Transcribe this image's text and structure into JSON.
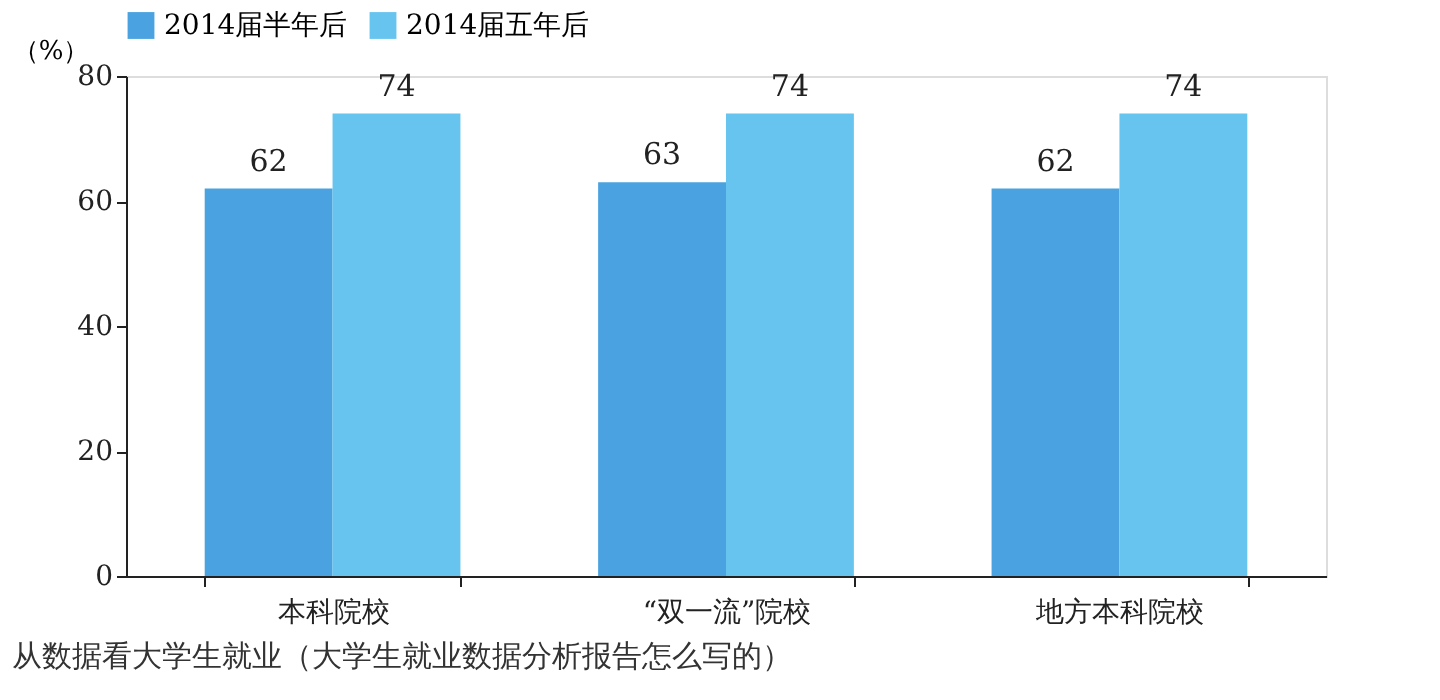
{
  "chart_data": {
    "type": "bar",
    "ylabel": "（%）",
    "categories": [
      "本科院校",
      "“双一流”院校",
      "地方本科院校"
    ],
    "series": [
      {
        "name": "2014届半年后",
        "color": "#4aa3e0",
        "values": [
          62,
          63,
          62
        ]
      },
      {
        "name": "2014届五年后",
        "color": "#66c4ef",
        "values": [
          74,
          74,
          74
        ]
      }
    ],
    "ylim": [
      0,
      80
    ],
    "yticks": [
      0,
      20,
      40,
      60,
      80
    ],
    "grid": false,
    "legend": "top",
    "data_labels": true,
    "annotations": [
      "从数据看大学生就业（大学生就业数据分析报告怎么写的）"
    ]
  }
}
